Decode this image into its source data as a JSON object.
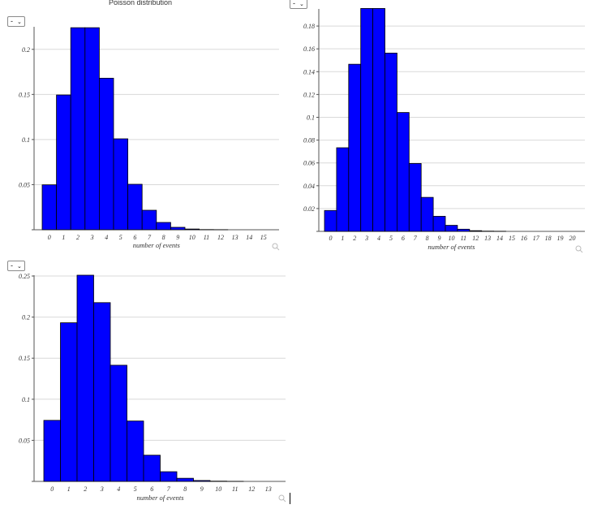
{
  "charts": [
    {
      "id": "c1",
      "title": "Poisson distribution",
      "select_value": "-",
      "xlabel": "number of events",
      "y_ticks": [
        0.05,
        0.1,
        0.15,
        0.2
      ],
      "ylim": [
        0,
        0.225
      ],
      "x_tick_labels": [
        "0",
        "1",
        "2",
        "3",
        "4",
        "5",
        "6",
        "7",
        "8",
        "9",
        "10",
        "11",
        "12",
        "13",
        "14",
        "15"
      ]
    },
    {
      "id": "c2",
      "title": "",
      "select_value": "-",
      "xlabel": "number of events",
      "y_ticks": [
        0.02,
        0.04,
        0.06,
        0.08,
        0.1,
        0.12,
        0.14,
        0.16,
        0.18
      ],
      "ylim": [
        0,
        0.195
      ],
      "x_tick_labels": [
        "0",
        "1",
        "2",
        "3",
        "4",
        "5",
        "6",
        "7",
        "8",
        "9",
        "10",
        "11",
        "12",
        "13",
        "14",
        "15",
        "16",
        "17",
        "18",
        "19",
        "20"
      ]
    },
    {
      "id": "c3",
      "title": "",
      "select_value": "-",
      "xlabel": "number of events",
      "y_ticks": [
        0.05,
        0.1,
        0.15,
        0.2,
        0.25
      ],
      "ylim": [
        0,
        0.251
      ],
      "x_tick_labels": [
        "0",
        "1",
        "2",
        "3",
        "4",
        "5",
        "6",
        "7",
        "8",
        "9",
        "10",
        "11",
        "12",
        "13"
      ]
    }
  ],
  "chart_data": [
    {
      "type": "bar",
      "title": "Poisson distribution",
      "xlabel": "number of events",
      "ylabel": "",
      "categories": [
        0,
        1,
        2,
        3,
        4,
        5,
        6,
        7,
        8,
        9,
        10,
        11,
        12,
        13,
        14,
        15
      ],
      "values": [
        0.0498,
        0.1494,
        0.224,
        0.224,
        0.168,
        0.1008,
        0.0504,
        0.0216,
        0.0081,
        0.0027,
        0.0008,
        0.0002,
        0.0001,
        0.0,
        0.0,
        0.0
      ],
      "ylim": [
        0,
        0.225
      ],
      "color": "#0000ff",
      "grid": true
    },
    {
      "type": "bar",
      "title": "",
      "xlabel": "number of events",
      "ylabel": "",
      "categories": [
        0,
        1,
        2,
        3,
        4,
        5,
        6,
        7,
        8,
        9,
        10,
        11,
        12,
        13,
        14,
        15,
        16,
        17,
        18,
        19,
        20
      ],
      "values": [
        0.0183,
        0.0733,
        0.1465,
        0.1954,
        0.1954,
        0.1563,
        0.1042,
        0.0595,
        0.0298,
        0.0132,
        0.0053,
        0.0019,
        0.0006,
        0.0002,
        0.0001,
        0.0,
        0.0,
        0.0,
        0.0,
        0.0,
        0.0
      ],
      "ylim": [
        0,
        0.195
      ],
      "color": "#0000ff",
      "grid": true
    },
    {
      "type": "bar",
      "title": "",
      "xlabel": "number of events",
      "ylabel": "",
      "categories": [
        0,
        1,
        2,
        3,
        4,
        5,
        6,
        7,
        8,
        9,
        10,
        11,
        12,
        13
      ],
      "values": [
        0.0743,
        0.1931,
        0.251,
        0.2176,
        0.1414,
        0.0735,
        0.0319,
        0.0118,
        0.0038,
        0.0011,
        0.0003,
        0.0001,
        0.0,
        0.0
      ],
      "ylim": [
        0,
        0.251
      ],
      "color": "#0000ff",
      "grid": true
    }
  ],
  "colors": {
    "bar": "#0000ff",
    "bar_stroke": "#000000",
    "grid": "#d9d9d9",
    "axis": "#555555"
  },
  "icons": {
    "zoom": "magnifier-icon",
    "dropdown": "chevron-down-icon"
  }
}
